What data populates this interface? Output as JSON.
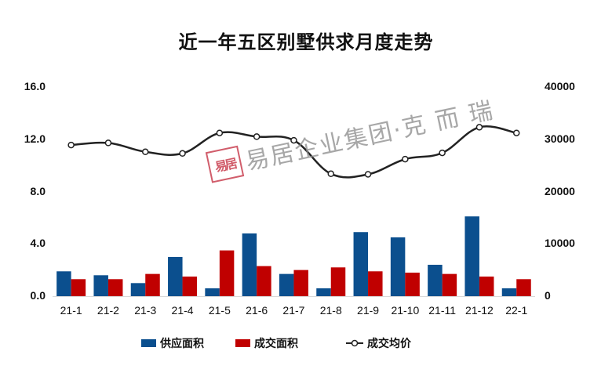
{
  "title": "近一年五区别墅供求月度走势",
  "watermark": {
    "seal": "易居",
    "text": "易居企业集团·克 而 瑞"
  },
  "colors": {
    "supply": "#0b4f8e",
    "deal": "#c00000",
    "price_line": "#222222"
  },
  "left_axis": {
    "ticks": [
      "16.0",
      "12.0",
      "8.0",
      "4.0",
      "0.0"
    ]
  },
  "right_axis": {
    "ticks": [
      "40000",
      "30000",
      "20000",
      "10000",
      "0"
    ]
  },
  "legend": [
    {
      "label": "供应面积",
      "type": "bar",
      "color": "#0b4f8e"
    },
    {
      "label": "成交面积",
      "type": "bar",
      "color": "#c00000"
    },
    {
      "label": "成交均价",
      "type": "line-marker",
      "color": "#222222"
    }
  ],
  "chart_data": {
    "type": "bar",
    "title": "近一年五区别墅供求月度走势",
    "categories": [
      "21-1",
      "21-2",
      "21-3",
      "21-4",
      "21-5",
      "21-6",
      "21-7",
      "21-8",
      "21-9",
      "21-10",
      "21-11",
      "21-12",
      "22-1"
    ],
    "series": [
      {
        "name": "供应面积",
        "type": "bar",
        "axis": "left",
        "color": "#0b4f8e",
        "values": [
          1.9,
          1.6,
          1.0,
          3.0,
          0.6,
          4.8,
          1.7,
          0.6,
          4.9,
          4.5,
          2.4,
          6.1,
          0.6
        ]
      },
      {
        "name": "成交面积",
        "type": "bar",
        "axis": "left",
        "color": "#c00000",
        "values": [
          1.3,
          1.3,
          1.7,
          1.5,
          3.5,
          2.3,
          2.0,
          2.2,
          1.9,
          1.8,
          1.7,
          1.5,
          1.3
        ]
      },
      {
        "name": "成交均价",
        "type": "line",
        "axis": "right",
        "color": "#222222",
        "values": [
          28900,
          29300,
          27600,
          27300,
          31200,
          30500,
          29800,
          23400,
          23300,
          26200,
          27400,
          32300,
          31200
        ]
      }
    ],
    "xlabel": "",
    "ylabel": "",
    "ylim": [
      0,
      16
    ],
    "y_ticks": [
      0,
      4,
      8,
      12,
      16
    ],
    "y2lim": [
      0,
      40000
    ],
    "y2_ticks": [
      0,
      10000,
      20000,
      30000,
      40000
    ],
    "grid": false,
    "legend_position": "bottom"
  }
}
